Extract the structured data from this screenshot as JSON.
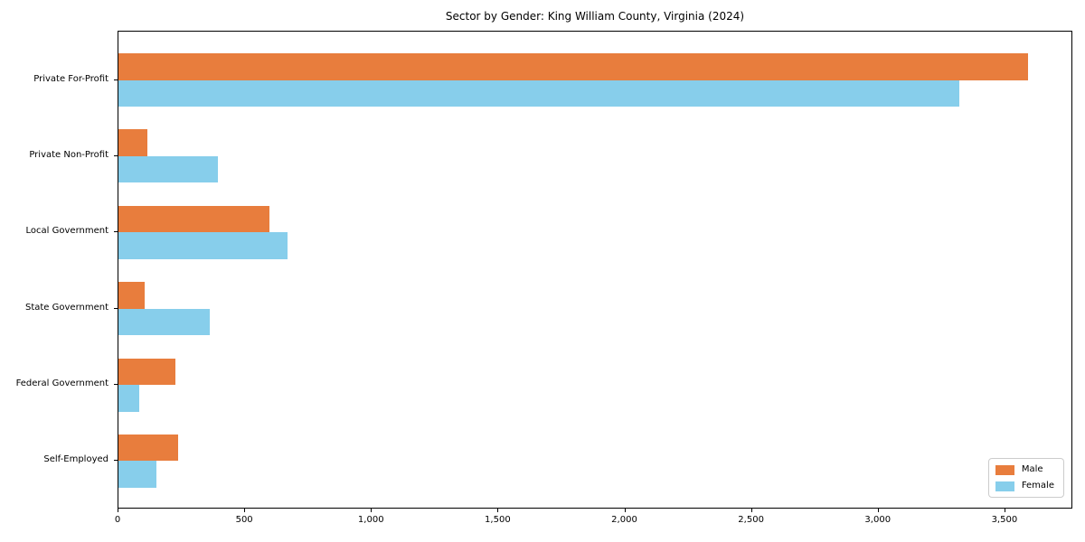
{
  "chart_data": {
    "type": "bar",
    "orientation": "horizontal",
    "title": "Sector by Gender: King William County, Virginia (2024)",
    "categories": [
      "Private For-Profit",
      "Private Non-Profit",
      "Local Government",
      "State Government",
      "Federal Government",
      "Self-Employed"
    ],
    "series": [
      {
        "name": "Male",
        "color": "#e87d3d",
        "values": [
          3590,
          113,
          595,
          104,
          226,
          235
        ]
      },
      {
        "name": "Female",
        "color": "#87ceeb",
        "values": [
          3320,
          393,
          669,
          361,
          83,
          151
        ]
      }
    ],
    "xlabel": "",
    "ylabel": "",
    "xlim": [
      0,
      3768
    ],
    "xticks": [
      0,
      500,
      1000,
      1500,
      2000,
      2500,
      3000,
      3500
    ],
    "xtick_labels": [
      "0",
      "500",
      "1,000",
      "1,500",
      "2,000",
      "2,500",
      "3,000",
      "3,500"
    ],
    "grid": false,
    "legend": {
      "position": "lower right",
      "entries": [
        "Male",
        "Female"
      ]
    },
    "axis_color": "#000000",
    "background_color": "#ffffff"
  }
}
